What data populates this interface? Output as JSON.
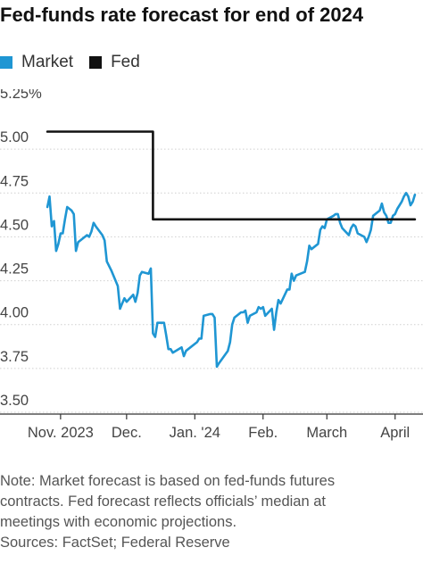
{
  "title": "Fed-funds rate forecast for end of 2024",
  "legend": [
    {
      "name": "Market",
      "color": "#1f96d3"
    },
    {
      "name": "Fed",
      "color": "#111111"
    }
  ],
  "notes": {
    "line1": "Note: Market forecast is based on fed-funds futures",
    "line2": "contracts. Fed forecast reflects officials’ median at",
    "line3": "meetings with economic projections.",
    "sources": "Sources: FactSet; Federal Reserve"
  },
  "chart_data": {
    "type": "line",
    "ylim": [
      3.5,
      5.25
    ],
    "yticks": [
      {
        "value": 5.25,
        "label": "5.25%"
      },
      {
        "value": 5.0,
        "label": "5.00"
      },
      {
        "value": 4.75,
        "label": "4.75"
      },
      {
        "value": 4.5,
        "label": "4.50"
      },
      {
        "value": 4.25,
        "label": "4.25"
      },
      {
        "value": 4.0,
        "label": "4.00"
      },
      {
        "value": 3.75,
        "label": "3.75"
      },
      {
        "value": 3.5,
        "label": "3.50"
      }
    ],
    "xlim": [
      "2023-10-28",
      "2024-04-08"
    ],
    "xticks": [
      {
        "date": "2023-11-01",
        "label": "Nov. 2023"
      },
      {
        "date": "2023-12-01",
        "label": "Dec."
      },
      {
        "date": "2024-01-01",
        "label": "Jan. '24"
      },
      {
        "date": "2024-02-01",
        "label": "Feb."
      },
      {
        "date": "2024-03-01",
        "label": "March"
      },
      {
        "date": "2024-04-01",
        "label": "April"
      }
    ],
    "series": [
      {
        "name": "Market",
        "color": "#1f96d3",
        "points": [
          [
            "2023-10-26",
            4.67
          ],
          [
            "2023-10-27",
            4.73
          ],
          [
            "2023-10-28",
            4.56
          ],
          [
            "2023-10-29",
            4.59
          ],
          [
            "2023-10-30",
            4.42
          ],
          [
            "2023-10-31",
            4.46
          ],
          [
            "2023-11-01",
            4.52
          ],
          [
            "2023-11-02",
            4.52
          ],
          [
            "2023-11-03",
            4.6
          ],
          [
            "2023-11-04",
            4.67
          ],
          [
            "2023-11-06",
            4.65
          ],
          [
            "2023-11-07",
            4.63
          ],
          [
            "2023-11-08",
            4.42
          ],
          [
            "2023-11-09",
            4.47
          ],
          [
            "2023-11-10",
            4.48
          ],
          [
            "2023-11-13",
            4.51
          ],
          [
            "2023-11-14",
            4.5
          ],
          [
            "2023-11-15",
            4.53
          ],
          [
            "2023-11-16",
            4.58
          ],
          [
            "2023-11-17",
            4.56
          ],
          [
            "2023-11-20",
            4.51
          ],
          [
            "2023-11-21",
            4.48
          ],
          [
            "2023-11-22",
            4.36
          ],
          [
            "2023-11-24",
            4.31
          ],
          [
            "2023-11-27",
            4.22
          ],
          [
            "2023-11-28",
            4.09
          ],
          [
            "2023-11-29",
            4.12
          ],
          [
            "2023-11-30",
            4.15
          ],
          [
            "2023-12-01",
            4.13
          ],
          [
            "2023-12-04",
            4.17
          ],
          [
            "2023-12-05",
            4.13
          ],
          [
            "2023-12-06",
            4.18
          ],
          [
            "2023-12-07",
            4.28
          ],
          [
            "2023-12-08",
            4.3
          ],
          [
            "2023-12-11",
            4.29
          ],
          [
            "2023-12-12",
            4.32
          ],
          [
            "2023-12-13",
            3.95
          ],
          [
            "2023-12-14",
            3.93
          ],
          [
            "2023-12-15",
            4.01
          ],
          [
            "2023-12-18",
            4.01
          ],
          [
            "2023-12-19",
            3.94
          ],
          [
            "2023-12-20",
            3.86
          ],
          [
            "2023-12-21",
            3.86
          ],
          [
            "2023-12-22",
            3.84
          ],
          [
            "2023-12-26",
            3.87
          ],
          [
            "2023-12-27",
            3.82
          ],
          [
            "2023-12-28",
            3.85
          ],
          [
            "2023-12-29",
            3.86
          ],
          [
            "2024-01-02",
            3.9
          ],
          [
            "2024-01-03",
            3.92
          ],
          [
            "2024-01-04",
            3.92
          ],
          [
            "2024-01-05",
            4.05
          ],
          [
            "2024-01-08",
            4.06
          ],
          [
            "2024-01-09",
            4.06
          ],
          [
            "2024-01-10",
            4.04
          ],
          [
            "2024-01-11",
            3.76
          ],
          [
            "2024-01-12",
            3.78
          ],
          [
            "2024-01-16",
            3.85
          ],
          [
            "2024-01-17",
            3.9
          ],
          [
            "2024-01-18",
            4.0
          ],
          [
            "2024-01-19",
            4.04
          ],
          [
            "2024-01-22",
            4.07
          ],
          [
            "2024-01-23",
            4.07
          ],
          [
            "2024-01-24",
            4.08
          ],
          [
            "2024-01-25",
            4.01
          ],
          [
            "2024-01-26",
            4.05
          ],
          [
            "2024-01-29",
            4.07
          ],
          [
            "2024-01-30",
            4.1
          ],
          [
            "2024-01-31",
            4.09
          ],
          [
            "2024-02-01",
            4.1
          ],
          [
            "2024-02-02",
            4.05
          ],
          [
            "2024-02-05",
            4.09
          ],
          [
            "2024-02-06",
            3.97
          ],
          [
            "2024-02-07",
            4.07
          ],
          [
            "2024-02-08",
            4.14
          ],
          [
            "2024-02-09",
            4.12
          ],
          [
            "2024-02-12",
            4.2
          ],
          [
            "2024-02-13",
            4.2
          ],
          [
            "2024-02-14",
            4.29
          ],
          [
            "2024-02-15",
            4.25
          ],
          [
            "2024-02-16",
            4.28
          ],
          [
            "2024-02-20",
            4.3
          ],
          [
            "2024-02-21",
            4.36
          ],
          [
            "2024-02-22",
            4.45
          ],
          [
            "2024-02-23",
            4.43
          ],
          [
            "2024-02-26",
            4.46
          ],
          [
            "2024-02-27",
            4.54
          ],
          [
            "2024-02-28",
            4.56
          ],
          [
            "2024-02-29",
            4.55
          ],
          [
            "2024-03-01",
            4.6
          ],
          [
            "2024-03-04",
            4.62
          ],
          [
            "2024-03-05",
            4.63
          ],
          [
            "2024-03-06",
            4.63
          ],
          [
            "2024-03-07",
            4.58
          ],
          [
            "2024-03-08",
            4.55
          ],
          [
            "2024-03-11",
            4.51
          ],
          [
            "2024-03-12",
            4.55
          ],
          [
            "2024-03-13",
            4.57
          ],
          [
            "2024-03-14",
            4.56
          ],
          [
            "2024-03-15",
            4.52
          ],
          [
            "2024-03-18",
            4.5
          ],
          [
            "2024-03-19",
            4.47
          ],
          [
            "2024-03-20",
            4.5
          ],
          [
            "2024-03-21",
            4.54
          ],
          [
            "2024-03-22",
            4.62
          ],
          [
            "2024-03-25",
            4.65
          ],
          [
            "2024-03-26",
            4.69
          ],
          [
            "2024-03-27",
            4.64
          ],
          [
            "2024-03-28",
            4.62
          ],
          [
            "2024-03-29",
            4.58
          ],
          [
            "2024-03-30",
            4.58
          ],
          [
            "2024-03-31",
            4.62
          ],
          [
            "2024-04-01",
            4.63
          ],
          [
            "2024-04-02",
            4.66
          ],
          [
            "2024-04-03",
            4.68
          ],
          [
            "2024-04-04",
            4.7
          ],
          [
            "2024-04-05",
            4.73
          ],
          [
            "2024-04-06",
            4.75
          ],
          [
            "2024-04-07",
            4.73
          ],
          [
            "2024-04-08",
            4.68
          ],
          [
            "2024-04-09",
            4.7
          ],
          [
            "2024-04-10",
            4.74
          ]
        ]
      },
      {
        "name": "Fed",
        "color": "#111111",
        "step": true,
        "points": [
          [
            "2023-10-26",
            5.1
          ],
          [
            "2023-12-13",
            5.1
          ],
          [
            "2023-12-13",
            4.6
          ],
          [
            "2024-04-10",
            4.6
          ]
        ]
      }
    ]
  }
}
